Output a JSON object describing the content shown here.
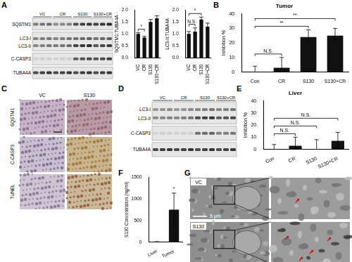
{
  "chart_data": [
    {
      "type": "bar",
      "y_label": "SQSTM1:TUBA4A",
      "categories": [
        "VC",
        "CR",
        "S130",
        "S130+CR"
      ],
      "values": [
        1.0,
        0.85,
        1.5,
        1.65
      ],
      "errors": [
        0.05,
        0.05,
        0.1,
        0.1
      ],
      "color": "#111111",
      "ylim": [
        0,
        2
      ],
      "yticks": [
        {
          "value": 0,
          "label": "0.0"
        },
        {
          "value": 0.5,
          "label": "0.5"
        },
        {
          "value": 1,
          "label": "1.0"
        },
        {
          "value": 1.5,
          "label": "1.5"
        },
        {
          "value": 2,
          "label": "2.0"
        }
      ],
      "grid": false,
      "annotations": [
        {
          "text": "*",
          "between": [
            "VC",
            "CR"
          ]
        }
      ]
    },
    {
      "type": "bar",
      "y_label": "LC3-II:TUBA4A",
      "categories": [
        "VC",
        "CR",
        "S130",
        "S130+CR"
      ],
      "values": [
        1.0,
        1.1,
        1.6,
        1.3
      ],
      "errors": [
        0.1,
        0.15,
        0.1,
        0.15
      ],
      "color": "#111111",
      "ylim": [
        0,
        2
      ],
      "yticks": [
        {
          "value": 0,
          "label": "0.0"
        },
        {
          "value": 0.5,
          "label": "0.5"
        },
        {
          "value": 1,
          "label": "1.0"
        },
        {
          "value": 1.5,
          "label": "1.5"
        },
        {
          "value": 2,
          "label": "2.0"
        }
      ],
      "grid": false,
      "annotations": [
        {
          "text": "N.S.",
          "between": [
            "VC",
            "CR"
          ]
        },
        {
          "text": "*",
          "between": [
            "VC",
            "S130"
          ]
        }
      ]
    },
    {
      "type": "bar",
      "title": "Tumor",
      "y_label": "Inhibition %",
      "categories": [
        "Con",
        "CR",
        "S130",
        "S130+CR"
      ],
      "values": [
        0,
        3,
        24,
        25
      ],
      "errors": [
        4,
        7,
        5,
        5
      ],
      "color": "#111111",
      "ylim": [
        0,
        40
      ],
      "yticks": [
        0,
        10,
        20,
        30,
        40
      ],
      "grid": false,
      "annotations": [
        {
          "text": "N.S.",
          "between": [
            "Con",
            "CR"
          ]
        },
        {
          "text": "**",
          "between": [
            "Con",
            "S130"
          ]
        },
        {
          "text": "**",
          "between": [
            "Con",
            "S130+CR"
          ]
        }
      ]
    },
    {
      "type": "bar",
      "title": "Liver",
      "y_label": "Inhibition %",
      "categories": [
        "Con",
        "CR",
        "S130",
        "S130+CR"
      ],
      "values": [
        0,
        3,
        0,
        7
      ],
      "errors": [
        4,
        7,
        8,
        7
      ],
      "color": "#111111",
      "ylim": [
        0,
        40
      ],
      "yticks": [
        0,
        10,
        20,
        30,
        40
      ],
      "grid": false,
      "annotations": [
        {
          "text": "N.S.",
          "between": [
            "Con",
            "CR"
          ]
        },
        {
          "text": "N.S.",
          "between": [
            "Con",
            "S130"
          ]
        },
        {
          "text": "N.S.",
          "between": [
            "Con",
            "S130+CR"
          ]
        }
      ]
    },
    {
      "type": "bar",
      "y_label": "S130 Concentration (ng/ml)",
      "categories": [
        "Liver",
        "Tumor"
      ],
      "values": [
        10,
        750
      ],
      "errors": [
        5,
        380
      ],
      "color": "#111111",
      "ylim": [
        0,
        1500
      ],
      "yticks": [
        0,
        500,
        1000,
        1500
      ],
      "grid": false,
      "annotations": [
        {
          "text": "*",
          "between": [
            "Tumor"
          ]
        }
      ]
    }
  ],
  "figure": {
    "panel_letters": [
      "A",
      "B",
      "C",
      "D",
      "E",
      "F",
      "G"
    ],
    "blot_A": {
      "lanes": [
        "VC",
        "CR",
        "S130",
        "S130+CR"
      ],
      "rows": [
        [
          "SQSTM1"
        ],
        [
          "LC3-I",
          "LC3-II"
        ],
        [
          "C-CASP3"
        ],
        [
          "TUBA4A"
        ]
      ]
    },
    "ihc_C": {
      "columns": [
        "VC",
        "S130"
      ],
      "rows": [
        "SQSTM1",
        "C-CASP3",
        "TUNEL"
      ]
    },
    "blot_D": {
      "lanes": [
        "VC",
        "CR",
        "S130",
        "S130+CR"
      ],
      "rows": [
        [
          "LC3-I",
          "LC3-II"
        ],
        [
          "C-CASP3"
        ],
        [
          "TUBA4A"
        ]
      ]
    },
    "tem_G": {
      "rows": [
        "VC",
        "S130"
      ],
      "scale_bar": "5 μm"
    }
  }
}
